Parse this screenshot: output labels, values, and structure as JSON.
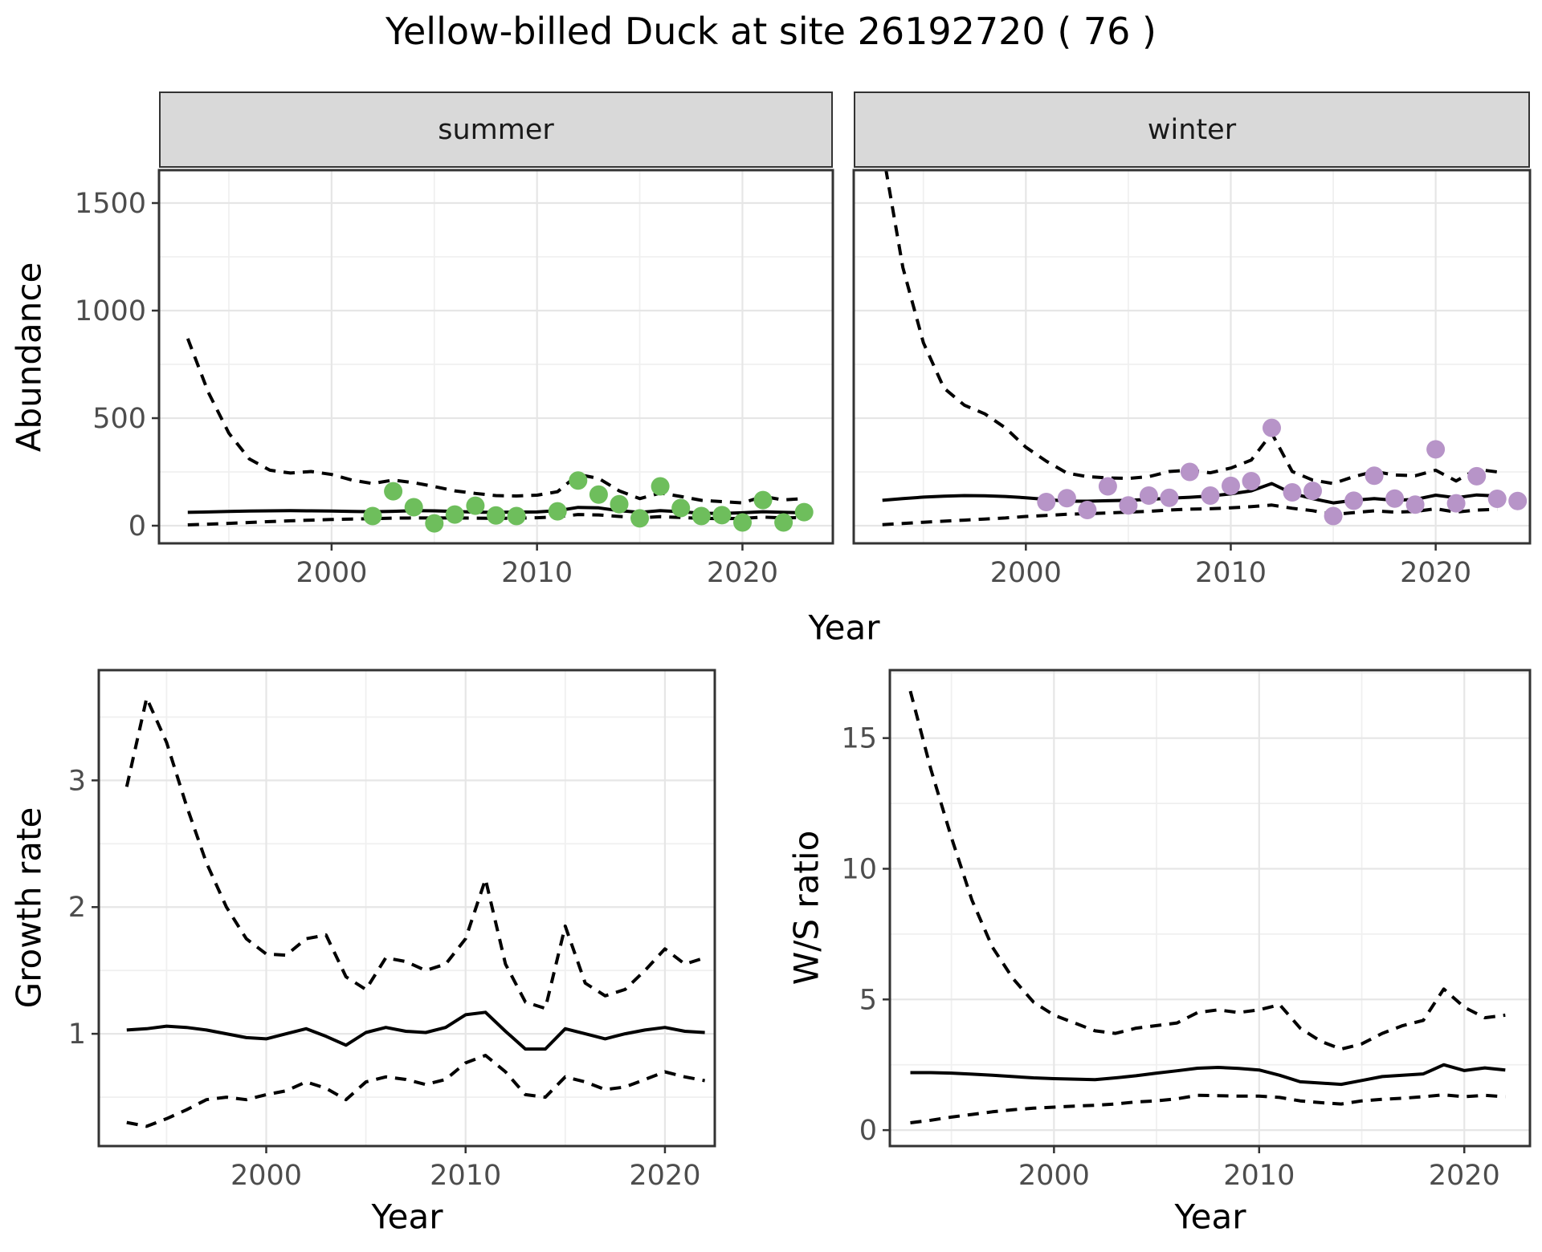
{
  "title": "Yellow-billed Duck at site 26192720 ( 76 )",
  "facets": {
    "summer": "summer",
    "winter": "winter"
  },
  "axis_titles": {
    "abundance": "Abundance",
    "year_top": "Year",
    "growth_rate": "Growth rate",
    "ws_ratio": "W/S ratio",
    "year_bottom_left": "Year",
    "year_bottom_right": "Year"
  },
  "colors": {
    "summer_point": "#6EBE5C",
    "winter_point": "#B794C8",
    "line": "#000000",
    "panel_border": "#333333",
    "strip_fill": "#d9d9d9",
    "grid_major": "#e6e6e6",
    "grid_minor": "#f0f0f0",
    "tick_label": "#4d4d4d",
    "tick_mark": "#333333"
  },
  "chart_data": [
    {
      "id": "abundance_summer",
      "type": "line",
      "facet_label": "summer",
      "xlabel": "Year",
      "ylabel": "Abundance",
      "xlim": [
        1991.6,
        2024.4
      ],
      "ylim": [
        -82,
        1653
      ],
      "xticks": [
        2000,
        2010,
        2020
      ],
      "yticks": [
        0,
        500,
        1000,
        1500
      ],
      "grid_x_major": [
        2000,
        2010,
        2020
      ],
      "grid_x_minor": [
        1995,
        2005,
        2015
      ],
      "grid_y_major": [
        0,
        500,
        1000,
        1500
      ],
      "grid_y_minor": [
        250,
        750,
        1250
      ],
      "years": [
        1993,
        1994,
        1995,
        1996,
        1997,
        1998,
        1999,
        2000,
        2001,
        2002,
        2003,
        2004,
        2005,
        2006,
        2007,
        2008,
        2009,
        2010,
        2011,
        2012,
        2013,
        2014,
        2015,
        2016,
        2017,
        2018,
        2019,
        2020,
        2021,
        2022,
        2023
      ],
      "series": [
        {
          "name": "fit",
          "style": "solid",
          "values": [
            62,
            64,
            66,
            68,
            69,
            70,
            69,
            68,
            66,
            65,
            67,
            70,
            69,
            66,
            63,
            62,
            63,
            64,
            70,
            85,
            83,
            70,
            62,
            70,
            65,
            58,
            57,
            60,
            65,
            62,
            60
          ]
        },
        {
          "name": "upper_ci",
          "style": "dashed",
          "values": [
            870,
            620,
            430,
            310,
            258,
            245,
            252,
            238,
            212,
            196,
            212,
            200,
            182,
            162,
            150,
            140,
            138,
            142,
            158,
            238,
            220,
            162,
            126,
            152,
            136,
            118,
            112,
            106,
            136,
            120,
            126
          ]
        },
        {
          "name": "lower_ci",
          "style": "dashed",
          "values": [
            4,
            7,
            11,
            15,
            19,
            23,
            26,
            29,
            31,
            33,
            35,
            36,
            36,
            36,
            35,
            34,
            35,
            37,
            41,
            52,
            50,
            43,
            37,
            42,
            38,
            34,
            33,
            34,
            40,
            36,
            38
          ]
        }
      ],
      "points": {
        "name": "observed_summer",
        "color_key": "summer_point",
        "xy": [
          [
            2002,
            45
          ],
          [
            2003,
            160
          ],
          [
            2004,
            86
          ],
          [
            2005,
            11
          ],
          [
            2006,
            52
          ],
          [
            2007,
            93
          ],
          [
            2008,
            48
          ],
          [
            2009,
            45
          ],
          [
            2011,
            67
          ],
          [
            2012,
            210
          ],
          [
            2013,
            145
          ],
          [
            2014,
            100
          ],
          [
            2015,
            34
          ],
          [
            2016,
            183
          ],
          [
            2017,
            82
          ],
          [
            2018,
            45
          ],
          [
            2019,
            49
          ],
          [
            2020,
            15
          ],
          [
            2021,
            119
          ],
          [
            2022,
            15
          ],
          [
            2023,
            63
          ]
        ]
      }
    },
    {
      "id": "abundance_winter",
      "type": "line",
      "facet_label": "winter",
      "xlabel": "Year",
      "ylabel": "Abundance",
      "xlim": [
        1991.6,
        2024.6
      ],
      "ylim": [
        -82,
        1653
      ],
      "xticks": [
        2000,
        2010,
        2020
      ],
      "yticks": [],
      "grid_x_major": [
        2000,
        2010,
        2020
      ],
      "grid_x_minor": [
        1995,
        2005,
        2015
      ],
      "grid_y_major": [
        0,
        500,
        1000,
        1500
      ],
      "grid_y_minor": [
        250,
        750,
        1250
      ],
      "years": [
        1993,
        1994,
        1995,
        1996,
        1997,
        1998,
        1999,
        2000,
        2001,
        2002,
        2003,
        2004,
        2005,
        2006,
        2007,
        2008,
        2009,
        2010,
        2011,
        2012,
        2013,
        2014,
        2015,
        2016,
        2017,
        2018,
        2019,
        2020,
        2021,
        2022,
        2023
      ],
      "series": [
        {
          "name": "fit",
          "style": "solid",
          "values": [
            118,
            126,
            133,
            137,
            140,
            139,
            136,
            130,
            122,
            114,
            114,
            116,
            118,
            122,
            128,
            132,
            138,
            148,
            162,
            196,
            150,
            126,
            106,
            118,
            126,
            118,
            122,
            142,
            130,
            143,
            138
          ]
        },
        {
          "name": "upper_ci",
          "style": "dashed",
          "values": [
            1750,
            1200,
            850,
            640,
            560,
            520,
            455,
            365,
            300,
            245,
            228,
            222,
            220,
            228,
            252,
            258,
            246,
            268,
            305,
            430,
            252,
            212,
            196,
            228,
            252,
            236,
            232,
            258,
            208,
            262,
            250
          ]
        },
        {
          "name": "lower_ci",
          "style": "dashed",
          "values": [
            5,
            10,
            16,
            21,
            26,
            31,
            36,
            43,
            48,
            53,
            56,
            59,
            63,
            67,
            73,
            77,
            79,
            83,
            89,
            96,
            81,
            70,
            52,
            61,
            69,
            63,
            66,
            79,
            63,
            73,
            76
          ]
        }
      ],
      "points": {
        "name": "observed_winter",
        "color_key": "winter_point",
        "xy": [
          [
            2001,
            110
          ],
          [
            2002,
            128
          ],
          [
            2003,
            73
          ],
          [
            2004,
            183
          ],
          [
            2005,
            94
          ],
          [
            2006,
            140
          ],
          [
            2007,
            130
          ],
          [
            2008,
            250
          ],
          [
            2009,
            140
          ],
          [
            2010,
            185
          ],
          [
            2011,
            207
          ],
          [
            2012,
            455
          ],
          [
            2013,
            155
          ],
          [
            2014,
            162
          ],
          [
            2015,
            45
          ],
          [
            2016,
            116
          ],
          [
            2017,
            232
          ],
          [
            2018,
            126
          ],
          [
            2019,
            98
          ],
          [
            2020,
            355
          ],
          [
            2021,
            104
          ],
          [
            2022,
            230
          ],
          [
            2023,
            125
          ],
          [
            2024,
            115
          ]
        ]
      }
    },
    {
      "id": "growth_rate",
      "type": "line",
      "facet_label": "",
      "xlabel": "Year",
      "ylabel": "Growth rate",
      "xlim": [
        1991.6,
        2022.5
      ],
      "ylim": [
        0.114,
        3.87
      ],
      "xticks": [
        2000,
        2010,
        2020
      ],
      "yticks": [
        1,
        2,
        3
      ],
      "grid_x_major": [
        2000,
        2010,
        2020
      ],
      "grid_x_minor": [
        1995,
        2005,
        2015
      ],
      "grid_y_major": [
        1,
        2,
        3
      ],
      "grid_y_minor": [
        0.5,
        1.5,
        2.5,
        3.5
      ],
      "years": [
        1993,
        1994,
        1995,
        1996,
        1997,
        1998,
        1999,
        2000,
        2001,
        2002,
        2003,
        2004,
        2005,
        2006,
        2007,
        2008,
        2009,
        2010,
        2011,
        2012,
        2013,
        2014,
        2015,
        2016,
        2017,
        2018,
        2019,
        2020,
        2021,
        2022
      ],
      "series": [
        {
          "name": "fit",
          "style": "solid",
          "values": [
            1.03,
            1.04,
            1.06,
            1.05,
            1.03,
            1.0,
            0.97,
            0.96,
            1.0,
            1.04,
            0.98,
            0.91,
            1.01,
            1.05,
            1.02,
            1.01,
            1.05,
            1.15,
            1.17,
            1.02,
            0.88,
            0.88,
            1.04,
            1.0,
            0.96,
            1.0,
            1.03,
            1.05,
            1.02,
            1.01
          ]
        },
        {
          "name": "upper_ci",
          "style": "dashed",
          "values": [
            2.95,
            3.65,
            3.3,
            2.8,
            2.35,
            2.0,
            1.75,
            1.63,
            1.62,
            1.75,
            1.78,
            1.45,
            1.35,
            1.6,
            1.57,
            1.5,
            1.55,
            1.75,
            2.22,
            1.55,
            1.25,
            1.2,
            1.85,
            1.4,
            1.3,
            1.35,
            1.5,
            1.67,
            1.55,
            1.6
          ]
        },
        {
          "name": "lower_ci",
          "style": "dashed",
          "values": [
            0.3,
            0.27,
            0.33,
            0.4,
            0.48,
            0.5,
            0.48,
            0.52,
            0.55,
            0.62,
            0.57,
            0.48,
            0.62,
            0.66,
            0.64,
            0.6,
            0.64,
            0.77,
            0.83,
            0.7,
            0.52,
            0.5,
            0.66,
            0.62,
            0.56,
            0.58,
            0.64,
            0.7,
            0.66,
            0.63
          ]
        }
      ],
      "points": null
    },
    {
      "id": "ws_ratio",
      "type": "line",
      "facet_label": "",
      "xlabel": "Year",
      "ylabel": "W/S ratio",
      "xlim": [
        1992.0,
        2023.2
      ],
      "ylim": [
        -0.61,
        17.6
      ],
      "xticks": [
        2000,
        2010,
        2020
      ],
      "yticks": [
        0,
        5,
        10,
        15
      ],
      "grid_x_major": [
        2000,
        2010,
        2020
      ],
      "grid_x_minor": [
        1995,
        2005,
        2015
      ],
      "grid_y_major": [
        0,
        5,
        10,
        15
      ],
      "grid_y_minor": [
        2.5,
        7.5,
        12.5,
        17.5
      ],
      "years": [
        1993,
        1994,
        1995,
        1996,
        1997,
        1998,
        1999,
        2000,
        2001,
        2002,
        2003,
        2004,
        2005,
        2006,
        2007,
        2008,
        2009,
        2010,
        2011,
        2012,
        2013,
        2014,
        2015,
        2016,
        2017,
        2018,
        2019,
        2020,
        2021,
        2022
      ],
      "series": [
        {
          "name": "fit",
          "style": "solid",
          "values": [
            2.2,
            2.2,
            2.18,
            2.14,
            2.1,
            2.05,
            2.0,
            1.97,
            1.95,
            1.93,
            2.0,
            2.08,
            2.18,
            2.27,
            2.37,
            2.4,
            2.36,
            2.3,
            2.1,
            1.85,
            1.8,
            1.75,
            1.9,
            2.05,
            2.1,
            2.15,
            2.5,
            2.28,
            2.38,
            2.3
          ]
        },
        {
          "name": "upper_ci",
          "style": "dashed",
          "values": [
            16.8,
            13.8,
            11.2,
            8.8,
            7.0,
            5.8,
            4.9,
            4.4,
            4.1,
            3.8,
            3.7,
            3.9,
            4.0,
            4.1,
            4.5,
            4.6,
            4.5,
            4.6,
            4.8,
            3.9,
            3.4,
            3.1,
            3.3,
            3.7,
            4.0,
            4.2,
            5.4,
            4.7,
            4.3,
            4.4
          ]
        },
        {
          "name": "lower_ci",
          "style": "dashed",
          "values": [
            0.28,
            0.38,
            0.5,
            0.6,
            0.7,
            0.78,
            0.84,
            0.88,
            0.92,
            0.95,
            1.0,
            1.08,
            1.12,
            1.2,
            1.33,
            1.32,
            1.3,
            1.3,
            1.25,
            1.12,
            1.05,
            1.0,
            1.12,
            1.18,
            1.22,
            1.28,
            1.35,
            1.28,
            1.33,
            1.28
          ]
        }
      ],
      "points": null
    }
  ]
}
